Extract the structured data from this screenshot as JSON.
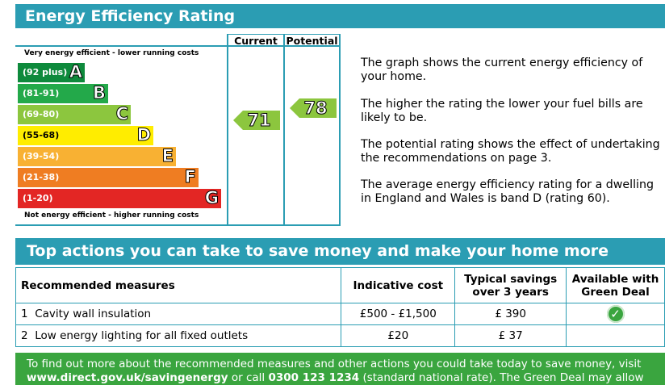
{
  "rating": {
    "title": "Energy Efficiency Rating",
    "columns": {
      "current": "Current",
      "potential": "Potential"
    },
    "top_note": "Very energy efficient - lower running costs",
    "bottom_note": "Not energy efficient - higher running costs",
    "bands": [
      {
        "range": "(92 plus)",
        "letter": "A",
        "color": "#0e8a3c"
      },
      {
        "range": "(81-91)",
        "letter": "B",
        "color": "#23a94a"
      },
      {
        "range": "(69-80)",
        "letter": "C",
        "color": "#8cc63e"
      },
      {
        "range": "(55-68)",
        "letter": "D",
        "color": "#ffed00"
      },
      {
        "range": "(39-54)",
        "letter": "E",
        "color": "#f8b133"
      },
      {
        "range": "(21-38)",
        "letter": "F",
        "color": "#ef7d22"
      },
      {
        "range": "(1-20)",
        "letter": "G",
        "color": "#e32624"
      }
    ],
    "current_value": "71",
    "potential_value": "78",
    "arrow_color": "#8cc63e"
  },
  "description": [
    "The graph shows the current energy efficiency of your home.",
    "The higher the rating the lower your fuel bills are likely to be.",
    "The potential rating shows the effect of undertaking the recommendations on page 3.",
    "The average energy efficiency rating for a dwelling in England and Wales is band D (rating 60)."
  ],
  "actions": {
    "title": "Top actions you can take to save money and make your home more efficient",
    "headers": {
      "measure": "Recommended measures",
      "cost": "Indicative cost",
      "savings": "Typical savings over 3 years",
      "green_deal": "Available with Green Deal"
    },
    "rows": [
      {
        "num": "1",
        "measure": "Cavity wall insulation",
        "cost": "£500 - £1,500",
        "savings": "£ 390",
        "green_deal": true
      },
      {
        "num": "2",
        "measure": "Low energy lighting for all fixed outlets",
        "cost": "£20",
        "savings": "£ 37",
        "green_deal": false
      }
    ]
  },
  "footer": {
    "line1": "To find out more about the recommended measures and other actions you could take today to save money, visit",
    "link": "www.direct.gov.uk/savingenergy",
    "mid": " or call ",
    "phone": "0300 123 1234",
    "line2_rest": " (standard national rate). The Green Deal may allow you to"
  },
  "colors": {
    "accent": "#2b9db3",
    "green": "#3aa53f"
  }
}
